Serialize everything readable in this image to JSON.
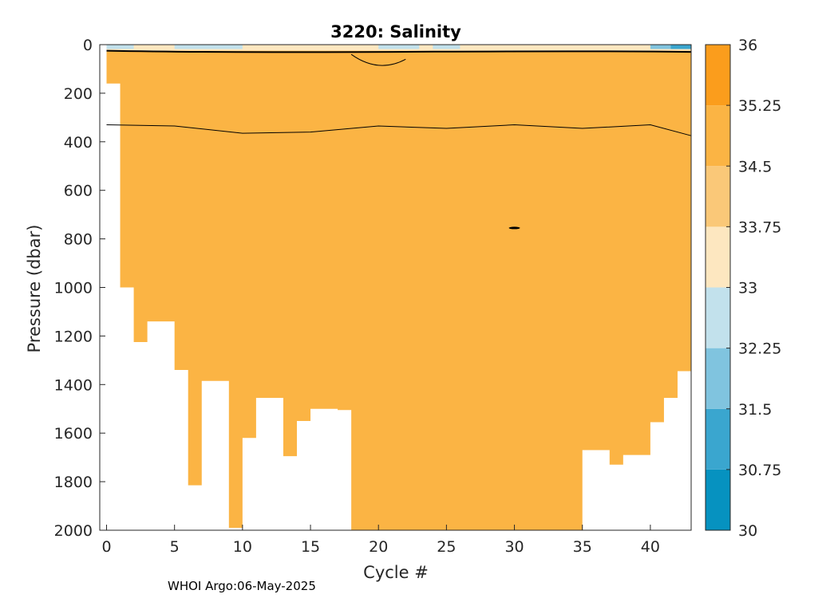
{
  "chart_data": {
    "type": "heatmap",
    "title": "3220:  Salinity",
    "xlabel": "Cycle #",
    "ylabel": "Pressure (dbar)",
    "xlim": [
      -0.5,
      43
    ],
    "ylim": [
      2000,
      0
    ],
    "x_ticks": [
      0,
      5,
      10,
      15,
      20,
      25,
      30,
      35,
      40
    ],
    "y_ticks": [
      0,
      200,
      400,
      600,
      800,
      1000,
      1200,
      1400,
      1600,
      1800,
      2000
    ],
    "colorbar": {
      "levels": [
        30,
        30.75,
        31.5,
        32.25,
        33,
        33.75,
        34.5,
        35.25,
        36
      ],
      "tick_labels": [
        "30",
        "30.75",
        "31.5",
        "32.25",
        "33",
        "33.75",
        "34.5",
        "35.25",
        "36"
      ],
      "colors": [
        "#0692c0",
        "#3aa6cf",
        "#80c4df",
        "#c2e1ec",
        "#fde7c0",
        "#fac878",
        "#fbb444",
        "#fb9d1c"
      ]
    },
    "dominant_salinity_band": [
      34.5,
      35.25
    ],
    "profile_max_pressure": [
      {
        "cycle": 0,
        "pressure": 160
      },
      {
        "cycle": 1,
        "pressure": 1000
      },
      {
        "cycle": 2,
        "pressure": 1225
      },
      {
        "cycle": 3,
        "pressure": 1140
      },
      {
        "cycle": 4,
        "pressure": 1140
      },
      {
        "cycle": 5,
        "pressure": 1340
      },
      {
        "cycle": 6,
        "pressure": 1815
      },
      {
        "cycle": 7,
        "pressure": 1385
      },
      {
        "cycle": 8,
        "pressure": 1385
      },
      {
        "cycle": 9,
        "pressure": 1990
      },
      {
        "cycle": 10,
        "pressure": 1620
      },
      {
        "cycle": 11,
        "pressure": 1455
      },
      {
        "cycle": 12,
        "pressure": 1455
      },
      {
        "cycle": 13,
        "pressure": 1695
      },
      {
        "cycle": 14,
        "pressure": 1550
      },
      {
        "cycle": 15,
        "pressure": 1500
      },
      {
        "cycle": 16,
        "pressure": 1500
      },
      {
        "cycle": 17,
        "pressure": 1505
      },
      {
        "cycle": 18,
        "pressure": 2000
      },
      {
        "cycle": 25,
        "pressure": 2000
      },
      {
        "cycle": 34,
        "pressure": 2000
      },
      {
        "cycle": 35,
        "pressure": 1670
      },
      {
        "cycle": 36,
        "pressure": 1670
      },
      {
        "cycle": 37,
        "pressure": 1730
      },
      {
        "cycle": 38,
        "pressure": 1690
      },
      {
        "cycle": 39,
        "pressure": 1690
      },
      {
        "cycle": 40,
        "pressure": 1555
      },
      {
        "cycle": 41,
        "pressure": 1455
      },
      {
        "cycle": 42,
        "pressure": 1345
      }
    ],
    "contour_depths": [
      {
        "x": [
          0,
          5,
          10,
          15,
          20,
          25,
          30,
          35,
          40,
          43
        ],
        "y": [
          330,
          335,
          365,
          360,
          335,
          345,
          330,
          345,
          330,
          375
        ]
      }
    ],
    "footer": "WHOI Argo:06-May-2025"
  }
}
